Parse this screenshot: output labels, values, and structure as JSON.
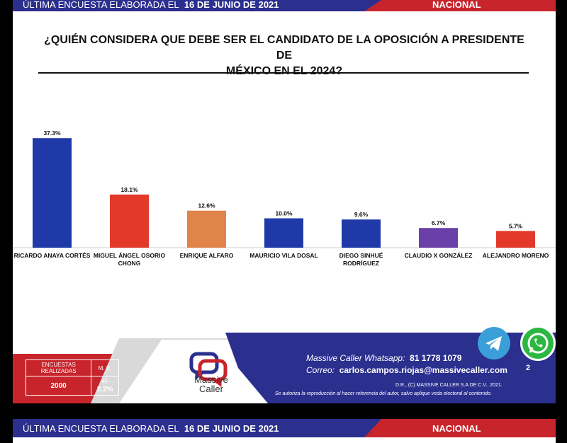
{
  "header": {
    "label": "ÚLTIMA ENCUESTA ELABORADA EL",
    "date": "16 DE JUNIO DE 2021",
    "region": "NACIONAL"
  },
  "title_line1": "¿QUIÉN CONSIDERA QUE DEBE SER EL CANDIDATO DE LA OPOSICIÓN A PRESIDENTE DE",
  "title_line2": "MÉXICO EN EL 2024?",
  "chart_data": {
    "type": "bar",
    "categories": [
      "RICARDO ANAYA CORTÉS",
      "MIGUEL ÁNGEL OSORIO CHONG",
      "ENRIQUE ALFARO",
      "MAURICIO VILA DOSAL",
      "DIEGO SINHUÉ RODRÍGUEZ",
      "CLAUDIO X GONZÁLEZ",
      "ALEJANDRO MORENO"
    ],
    "category_lines": [
      [
        "RICARDO ANAYA CORTÉS"
      ],
      [
        "MIGUEL ÁNGEL OSORIO",
        "CHONG"
      ],
      [
        "ENRIQUE ALFARO"
      ],
      [
        "MAURICIO VILA DOSAL"
      ],
      [
        "DIEGO SINHUÉ",
        "RODRÍGUEZ"
      ],
      [
        "CLAUDIO X GONZÁLEZ"
      ],
      [
        "ALEJANDRO MORENO"
      ]
    ],
    "values": [
      37.3,
      18.1,
      12.6,
      10.0,
      9.6,
      6.7,
      5.7
    ],
    "labels": [
      "37.3%",
      "18.1%",
      "12.6%",
      "10.0%",
      "9.6%",
      "6.7%",
      "5.7%"
    ],
    "colors": [
      "#1f3aa8",
      "#e2392a",
      "#e0844a",
      "#1f3aa8",
      "#1f3aa8",
      "#6a3fa8",
      "#e2392a"
    ],
    "ylim": [
      0,
      40
    ],
    "grid": false,
    "legend": "none"
  },
  "footer": {
    "stats_label1": "ENCUESTAS REALIZADAS",
    "stats_label2": "M. E.",
    "stats_value1": "2000",
    "stats_value2": "+/- 2.2%",
    "brand_line1": "Massive",
    "brand_line2": "Caller",
    "whatsapp_label": "Massive Caller Whatsapp:",
    "whatsapp_number": "81 1778 1079",
    "mail_label": "Correo:",
    "mail_value": "carlos.campos.riojas@massivecaller.com",
    "legal1": "D.R., (C) MASSIVE CALLER S.A DE C.V., 2021.",
    "legal2": "Se autoriza la reproducción al hacer referencia del autor, salvo aplique veda electoral al contenido.",
    "badge": "2"
  },
  "icons": {
    "telegram": "telegram-icon",
    "whatsapp": "whatsapp-icon"
  }
}
